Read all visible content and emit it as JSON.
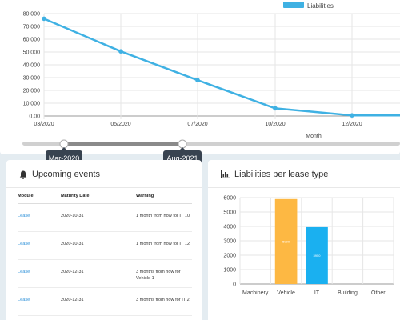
{
  "colors": {
    "line": "#3fb1e3",
    "bar_vehicle": "#fdb843",
    "bar_it": "#1ab0f0",
    "link": "#2a8fd8",
    "pill": "#384350"
  },
  "liabilities_chart": {
    "chart_data": {
      "type": "line",
      "legend": "Liabilities",
      "xlabel": "Month",
      "x_ticks": [
        "03/2020",
        "05/2020",
        "07/2020",
        "10/2020",
        "12/2020"
      ],
      "y_ticks": [
        "0.00",
        "10,000",
        "20,000",
        "30,000",
        "40,000",
        "50,000",
        "60,000",
        "70,000",
        "80,000"
      ],
      "ylim": [
        0,
        80000
      ],
      "points": [
        {
          "x": "03/2020",
          "y": 76000
        },
        {
          "x": "05/2020",
          "y": 50500
        },
        {
          "x": "07/2020",
          "y": 28000
        },
        {
          "x": "10/2020",
          "y": 6000
        },
        {
          "x": "12/2020",
          "y": 500
        }
      ]
    }
  },
  "range_slider": {
    "start_label": "Mar-2020",
    "end_label": "Aug-2021"
  },
  "events": {
    "title": "Upcoming events",
    "columns": [
      "Module",
      "Maturity Date",
      "Warning"
    ],
    "rows": [
      {
        "module": "Lease",
        "date": "2020-10-31",
        "warning": "1 month from now for IT 10"
      },
      {
        "module": "Lease",
        "date": "2020-10-31",
        "warning": "1 month from now for IT 12"
      },
      {
        "module": "Lease",
        "date": "2020-12-31",
        "warning": "3 months from now for Vehicle 1"
      },
      {
        "module": "Lease",
        "date": "2020-12-31",
        "warning": "3 months from now for IT 2"
      }
    ]
  },
  "lease_type": {
    "title": "Liabilities per lease type",
    "chart_data": {
      "type": "bar",
      "categories": [
        "Machinery",
        "Vehicle",
        "IT",
        "Building",
        "Other"
      ],
      "values": [
        0,
        5900,
        3950,
        0,
        0
      ],
      "value_labels": [
        "",
        "5900",
        "3950",
        "",
        ""
      ],
      "y_ticks": [
        "0",
        "1000",
        "2000",
        "3000",
        "4000",
        "5000",
        "6000"
      ],
      "ylim": [
        0,
        6000
      ]
    }
  }
}
